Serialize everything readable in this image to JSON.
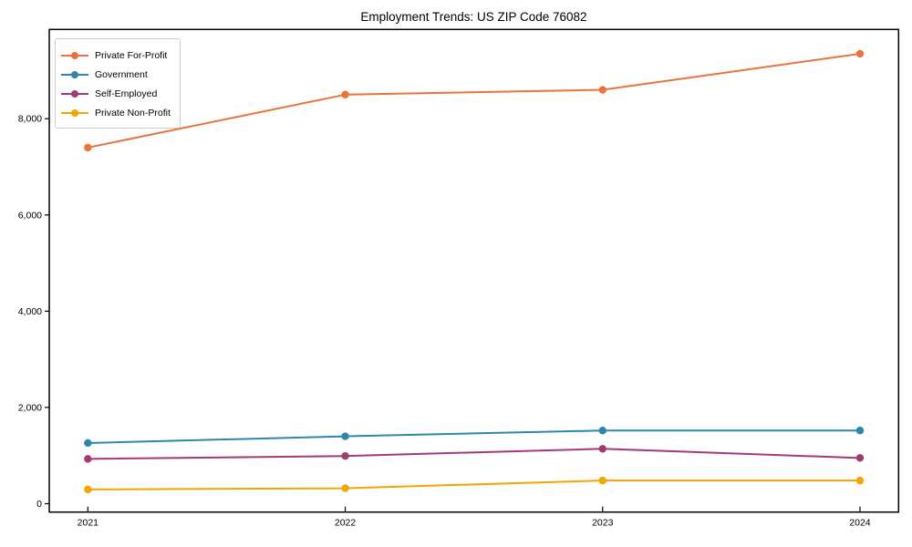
{
  "chart_data": {
    "type": "line",
    "title": "Employment Trends: US ZIP Code 76082",
    "x": [
      2021,
      2022,
      2023,
      2024
    ],
    "x_tick_labels": [
      "2021",
      "2022",
      "2023",
      "2024"
    ],
    "y_ticks": {
      "values": [
        0,
        2000,
        4000,
        6000,
        8000
      ],
      "labels": [
        "0",
        "2,000",
        "4,000",
        "6,000",
        "8,000"
      ]
    },
    "xlim": [
      2020.85,
      2024.15
    ],
    "ylim": [
      -175,
      9855
    ],
    "grid": false,
    "legend_position": "upper-left",
    "series": [
      {
        "name": "Private For-Profit",
        "color": "#E8743B",
        "values": [
          7400,
          8500,
          8600,
          9350
        ]
      },
      {
        "name": "Government",
        "color": "#2E86AB",
        "values": [
          1260,
          1400,
          1520,
          1520
        ]
      },
      {
        "name": "Self-Employed",
        "color": "#A23B72",
        "values": [
          930,
          990,
          1140,
          950
        ]
      },
      {
        "name": "Private Non-Profit",
        "color": "#F5A300",
        "values": [
          295,
          320,
          480,
          480
        ]
      }
    ]
  },
  "colors": {
    "background": "#ffffff",
    "axis": "#000000",
    "text": "#000000",
    "legend_border": "#cccccc"
  }
}
